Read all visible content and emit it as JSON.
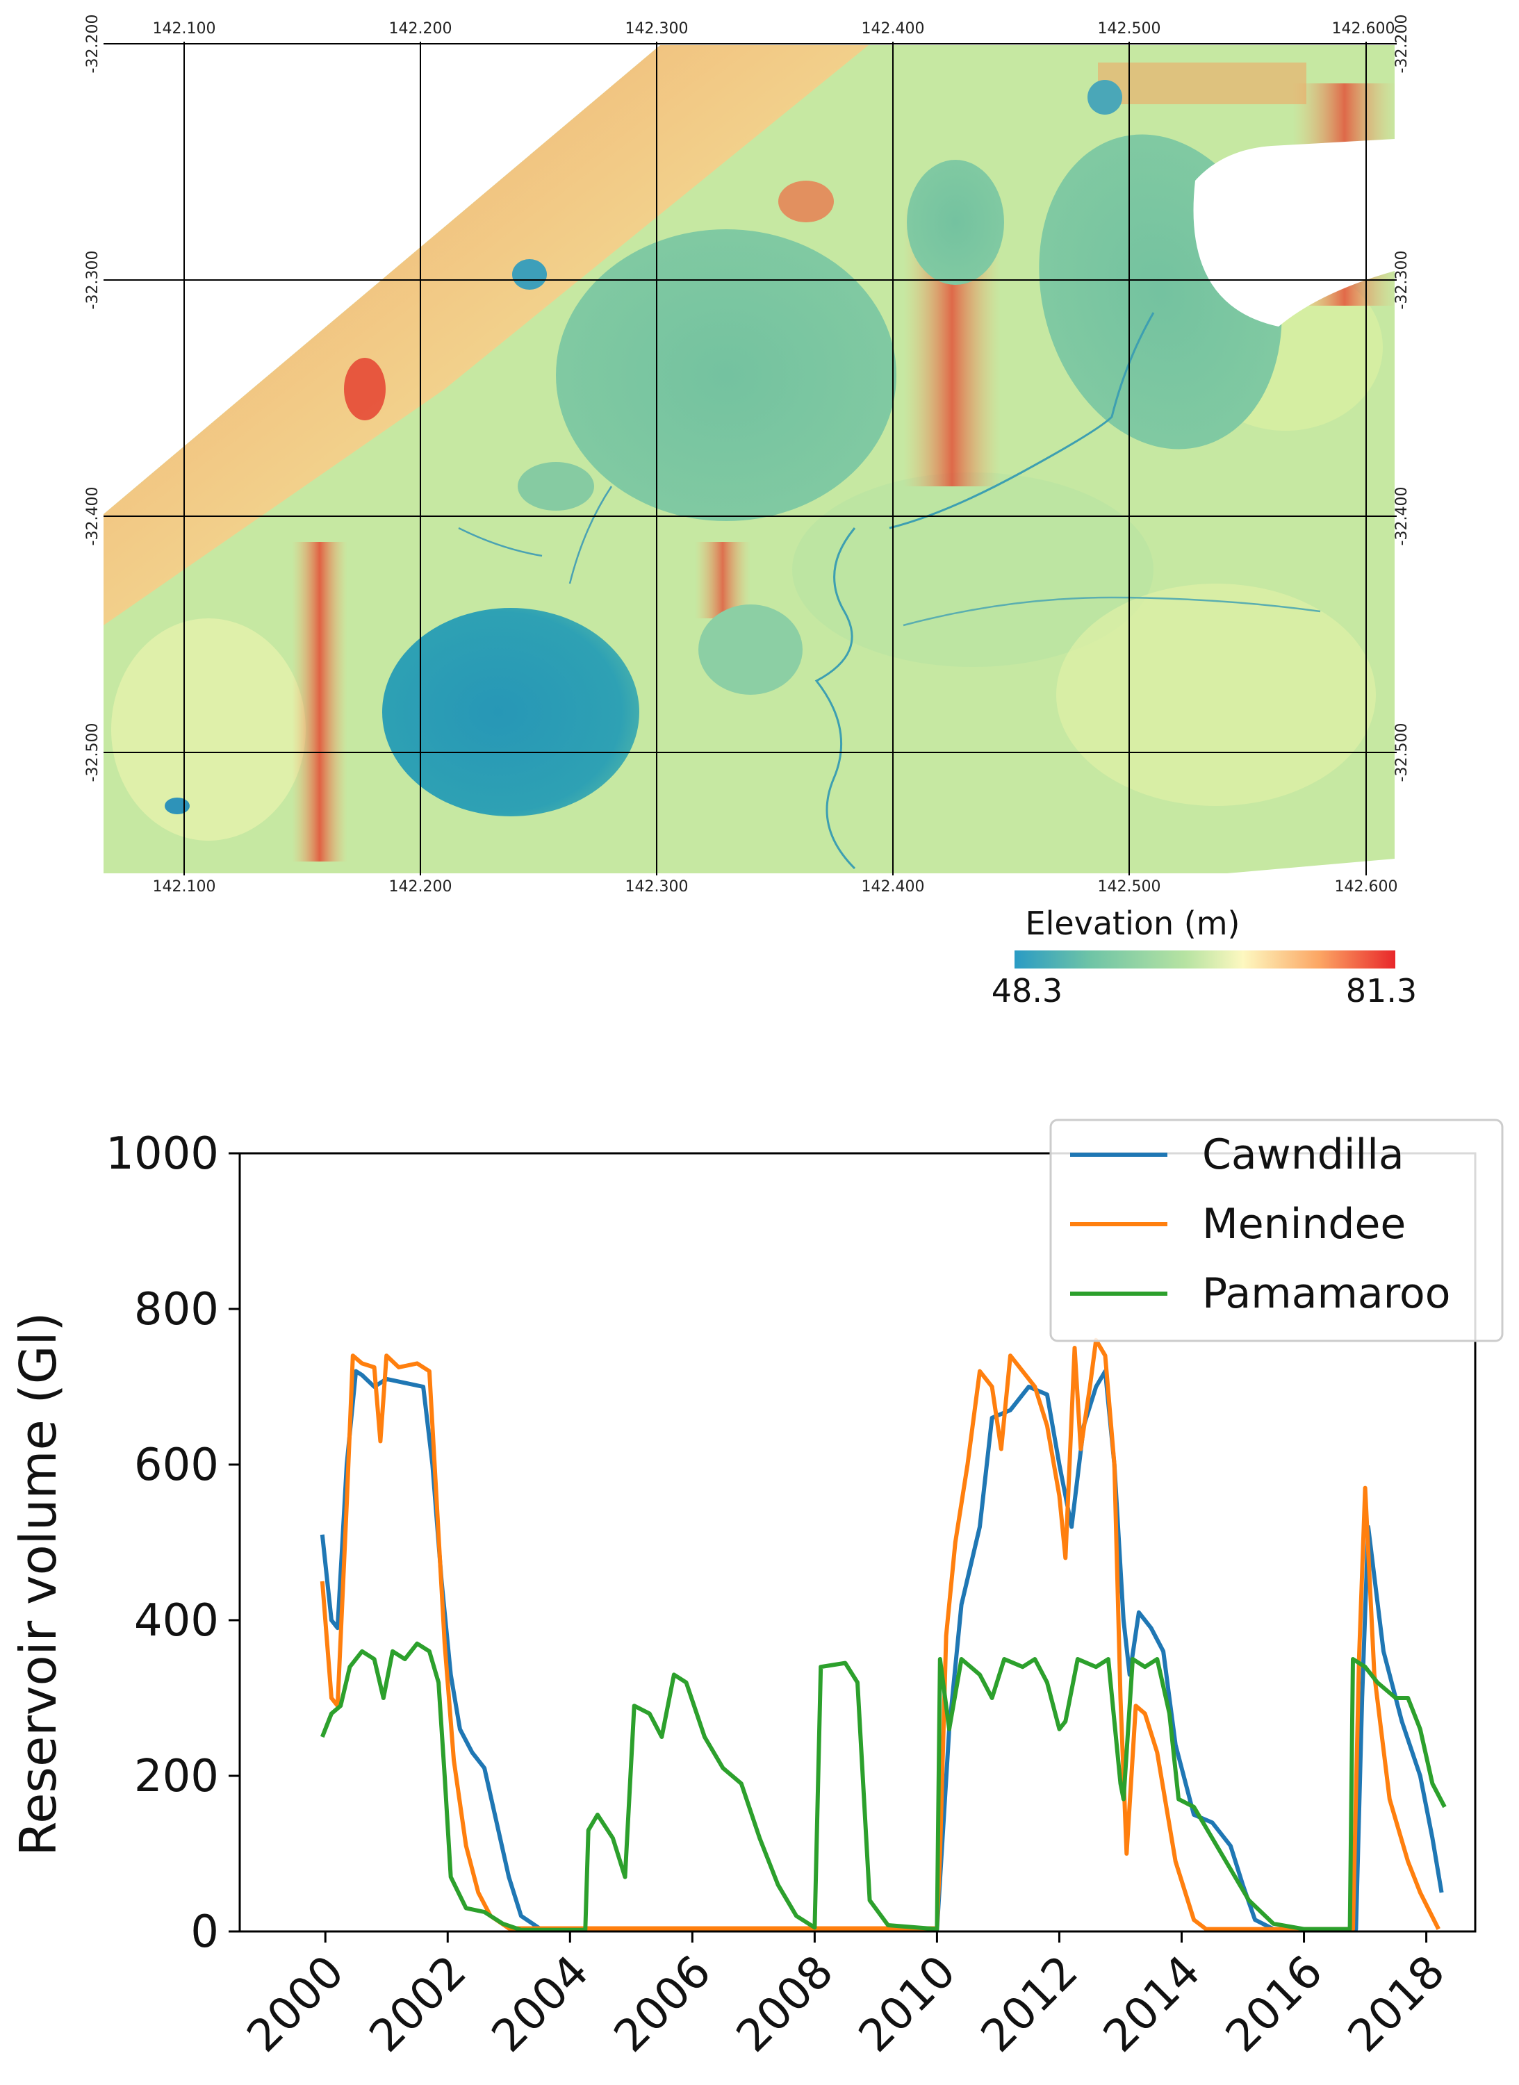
{
  "map": {
    "colorbar": {
      "label": "Elevation (m)",
      "min_label": "48.3",
      "max_label": "81.3",
      "colors": [
        "#2a9bc4",
        "#6fc4a6",
        "#b7e3a2",
        "#fdf8c0",
        "#fca664",
        "#e8272a"
      ]
    },
    "lon_ticks": [
      "142.100",
      "142.200",
      "142.300",
      "142.400",
      "142.500",
      "142.600"
    ],
    "lat_ticks": [
      "-32.200",
      "-32.300",
      "-32.400",
      "-32.500"
    ],
    "colors": {
      "lake": "#79c7a3",
      "lake_deep": "#2e9ab5",
      "terrain_low": "#bde6a0",
      "terrain_high": "#f8a062",
      "ridge": "#e33a2c",
      "grid": "#000000"
    }
  },
  "chart_data": {
    "type": "line",
    "title": "",
    "xlabel": "",
    "ylabel": "Reservoir volume (Gl)",
    "xlim": [
      1998.6,
      2018.8
    ],
    "ylim": [
      0,
      1000
    ],
    "x_ticks": [
      2000,
      2002,
      2004,
      2006,
      2008,
      2010,
      2012,
      2014,
      2016,
      2018
    ],
    "x_tick_labels": [
      "2000",
      "2002",
      "2004",
      "2006",
      "2008",
      "2010",
      "2012",
      "2014",
      "2016",
      "2018"
    ],
    "y_ticks": [
      0,
      200,
      400,
      600,
      800,
      1000
    ],
    "y_tick_labels": [
      "0",
      "200",
      "400",
      "600",
      "800",
      "1000"
    ],
    "legend_position": "top-right",
    "series": [
      {
        "name": "Cawndilla",
        "color": "#1f77b4",
        "points": [
          [
            1999.95,
            510
          ],
          [
            2000.1,
            400
          ],
          [
            2000.2,
            390
          ],
          [
            2000.35,
            600
          ],
          [
            2000.5,
            720
          ],
          [
            2000.6,
            715
          ],
          [
            2000.8,
            700
          ],
          [
            2001.0,
            710
          ],
          [
            2001.3,
            705
          ],
          [
            2001.6,
            700
          ],
          [
            2001.75,
            600
          ],
          [
            2001.9,
            450
          ],
          [
            2002.05,
            330
          ],
          [
            2002.2,
            260
          ],
          [
            2002.4,
            230
          ],
          [
            2002.6,
            210
          ],
          [
            2002.8,
            140
          ],
          [
            2003.0,
            70
          ],
          [
            2003.2,
            20
          ],
          [
            2003.5,
            4
          ],
          [
            2004.0,
            2
          ],
          [
            2010.0,
            2
          ],
          [
            2010.2,
            260
          ],
          [
            2010.4,
            420
          ],
          [
            2010.7,
            520
          ],
          [
            2010.9,
            660
          ],
          [
            2011.2,
            670
          ],
          [
            2011.5,
            700
          ],
          [
            2011.8,
            690
          ],
          [
            2012.0,
            600
          ],
          [
            2012.2,
            520
          ],
          [
            2012.4,
            650
          ],
          [
            2012.6,
            700
          ],
          [
            2012.75,
            720
          ],
          [
            2012.9,
            600
          ],
          [
            2013.05,
            400
          ],
          [
            2013.15,
            330
          ],
          [
            2013.3,
            410
          ],
          [
            2013.5,
            390
          ],
          [
            2013.7,
            360
          ],
          [
            2013.9,
            240
          ],
          [
            2014.2,
            150
          ],
          [
            2014.5,
            140
          ],
          [
            2014.8,
            110
          ],
          [
            2015.0,
            60
          ],
          [
            2015.2,
            15
          ],
          [
            2015.5,
            3
          ],
          [
            2016.85,
            3
          ],
          [
            2016.95,
            300
          ],
          [
            2017.05,
            520
          ],
          [
            2017.3,
            360
          ],
          [
            2017.6,
            270
          ],
          [
            2017.9,
            200
          ],
          [
            2018.1,
            120
          ],
          [
            2018.25,
            50
          ]
        ]
      },
      {
        "name": "Menindee",
        "color": "#ff7f0e",
        "points": [
          [
            1999.95,
            450
          ],
          [
            2000.1,
            300
          ],
          [
            2000.2,
            290
          ],
          [
            2000.35,
            550
          ],
          [
            2000.45,
            740
          ],
          [
            2000.6,
            730
          ],
          [
            2000.8,
            725
          ],
          [
            2000.9,
            630
          ],
          [
            2001.0,
            740
          ],
          [
            2001.2,
            725
          ],
          [
            2001.5,
            730
          ],
          [
            2001.7,
            720
          ],
          [
            2001.8,
            580
          ],
          [
            2001.95,
            370
          ],
          [
            2002.1,
            220
          ],
          [
            2002.3,
            110
          ],
          [
            2002.5,
            50
          ],
          [
            2002.7,
            20
          ],
          [
            2003.0,
            4
          ],
          [
            2010.0,
            4
          ],
          [
            2010.05,
            100
          ],
          [
            2010.15,
            380
          ],
          [
            2010.3,
            500
          ],
          [
            2010.5,
            600
          ],
          [
            2010.7,
            720
          ],
          [
            2010.9,
            700
          ],
          [
            2011.05,
            620
          ],
          [
            2011.2,
            740
          ],
          [
            2011.4,
            720
          ],
          [
            2011.6,
            700
          ],
          [
            2011.8,
            650
          ],
          [
            2012.0,
            560
          ],
          [
            2012.1,
            480
          ],
          [
            2012.25,
            750
          ],
          [
            2012.35,
            620
          ],
          [
            2012.5,
            700
          ],
          [
            2012.6,
            760
          ],
          [
            2012.75,
            740
          ],
          [
            2012.9,
            600
          ],
          [
            2013.0,
            300
          ],
          [
            2013.1,
            100
          ],
          [
            2013.25,
            290
          ],
          [
            2013.4,
            280
          ],
          [
            2013.6,
            230
          ],
          [
            2013.9,
            90
          ],
          [
            2014.2,
            15
          ],
          [
            2014.4,
            3
          ],
          [
            2016.8,
            3
          ],
          [
            2016.9,
            350
          ],
          [
            2017.0,
            570
          ],
          [
            2017.15,
            330
          ],
          [
            2017.4,
            170
          ],
          [
            2017.7,
            90
          ],
          [
            2017.9,
            50
          ],
          [
            2018.2,
            3
          ]
        ]
      },
      {
        "name": "Pamamaroo",
        "color": "#2ca02c",
        "points": [
          [
            1999.95,
            250
          ],
          [
            2000.1,
            280
          ],
          [
            2000.25,
            290
          ],
          [
            2000.4,
            340
          ],
          [
            2000.6,
            360
          ],
          [
            2000.8,
            350
          ],
          [
            2000.95,
            300
          ],
          [
            2001.1,
            360
          ],
          [
            2001.3,
            350
          ],
          [
            2001.5,
            370
          ],
          [
            2001.7,
            360
          ],
          [
            2001.85,
            320
          ],
          [
            2001.95,
            200
          ],
          [
            2002.05,
            70
          ],
          [
            2002.3,
            30
          ],
          [
            2002.6,
            25
          ],
          [
            2002.9,
            10
          ],
          [
            2003.2,
            2
          ],
          [
            2004.25,
            2
          ],
          [
            2004.3,
            130
          ],
          [
            2004.45,
            150
          ],
          [
            2004.7,
            120
          ],
          [
            2004.9,
            70
          ],
          [
            2005.05,
            290
          ],
          [
            2005.3,
            280
          ],
          [
            2005.5,
            250
          ],
          [
            2005.7,
            330
          ],
          [
            2005.9,
            320
          ],
          [
            2006.2,
            250
          ],
          [
            2006.5,
            210
          ],
          [
            2006.8,
            190
          ],
          [
            2007.1,
            120
          ],
          [
            2007.4,
            60
          ],
          [
            2007.7,
            20
          ],
          [
            2008.0,
            5
          ],
          [
            2008.1,
            340
          ],
          [
            2008.5,
            345
          ],
          [
            2008.7,
            320
          ],
          [
            2008.9,
            40
          ],
          [
            2009.2,
            8
          ],
          [
            2010.0,
            3
          ],
          [
            2010.05,
            350
          ],
          [
            2010.2,
            260
          ],
          [
            2010.4,
            350
          ],
          [
            2010.7,
            330
          ],
          [
            2010.9,
            300
          ],
          [
            2011.1,
            350
          ],
          [
            2011.4,
            340
          ],
          [
            2011.6,
            350
          ],
          [
            2011.8,
            320
          ],
          [
            2012.0,
            260
          ],
          [
            2012.1,
            270
          ],
          [
            2012.3,
            350
          ],
          [
            2012.6,
            340
          ],
          [
            2012.8,
            350
          ],
          [
            2013.0,
            190
          ],
          [
            2013.05,
            170
          ],
          [
            2013.2,
            350
          ],
          [
            2013.4,
            340
          ],
          [
            2013.6,
            350
          ],
          [
            2013.8,
            280
          ],
          [
            2013.95,
            170
          ],
          [
            2014.2,
            160
          ],
          [
            2014.5,
            120
          ],
          [
            2014.8,
            80
          ],
          [
            2015.1,
            40
          ],
          [
            2015.5,
            10
          ],
          [
            2016.0,
            3
          ],
          [
            2016.75,
            3
          ],
          [
            2016.8,
            350
          ],
          [
            2017.0,
            340
          ],
          [
            2017.2,
            320
          ],
          [
            2017.5,
            300
          ],
          [
            2017.7,
            300
          ],
          [
            2017.9,
            260
          ],
          [
            2018.1,
            190
          ],
          [
            2018.3,
            160
          ]
        ]
      }
    ]
  }
}
